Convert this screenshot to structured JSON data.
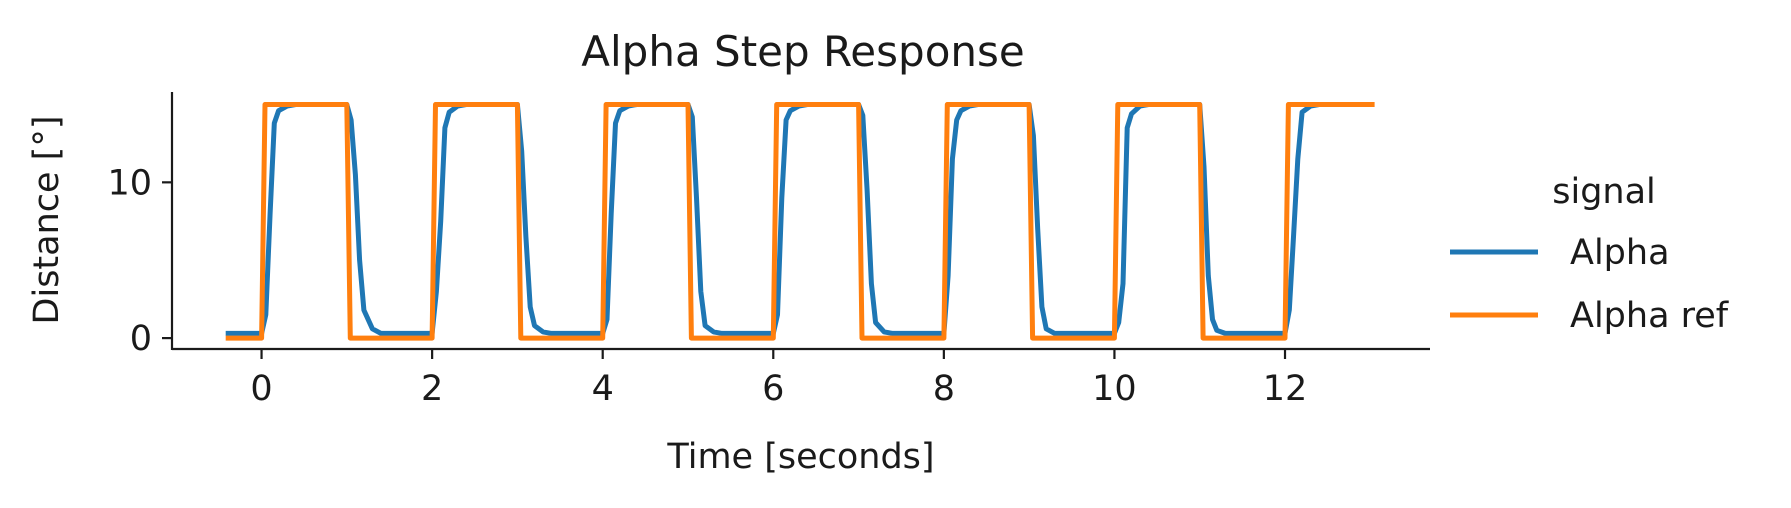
{
  "chart_data": {
    "type": "line",
    "title": "Alpha Step Response",
    "xlabel": "Time [seconds]",
    "ylabel": "Distance [°]",
    "xlim": [
      -1.05,
      13.7
    ],
    "ylim": [
      -0.7,
      15.8
    ],
    "xticks": [
      0,
      2,
      4,
      6,
      8,
      10,
      12
    ],
    "yticks": [
      0,
      10
    ],
    "grid": false,
    "legend": {
      "title": "signal",
      "position": "right",
      "entries": [
        "Alpha",
        "Alpha ref"
      ]
    },
    "series": [
      {
        "name": "Alpha",
        "color": "#1f77b4",
        "x": [
          -0.42,
          0.0,
          0.05,
          0.1,
          0.15,
          0.2,
          0.3,
          0.4,
          0.6,
          0.8,
          1.0,
          1.05,
          1.1,
          1.15,
          1.2,
          1.3,
          1.4,
          1.6,
          1.8,
          2.0,
          2.05,
          2.1,
          2.15,
          2.2,
          2.3,
          2.4,
          2.6,
          2.8,
          3.0,
          3.05,
          3.1,
          3.15,
          3.2,
          3.3,
          3.4,
          3.6,
          3.8,
          4.0,
          4.05,
          4.1,
          4.15,
          4.2,
          4.3,
          4.4,
          4.6,
          4.8,
          5.0,
          5.05,
          5.1,
          5.15,
          5.2,
          5.3,
          5.4,
          5.6,
          5.8,
          6.0,
          6.05,
          6.1,
          6.15,
          6.2,
          6.3,
          6.4,
          6.6,
          6.8,
          7.0,
          7.05,
          7.1,
          7.15,
          7.2,
          7.3,
          7.4,
          7.6,
          7.8,
          8.0,
          8.05,
          8.1,
          8.15,
          8.2,
          8.3,
          8.4,
          8.6,
          8.8,
          9.0,
          9.05,
          9.1,
          9.15,
          9.2,
          9.3,
          9.4,
          9.6,
          9.8,
          10.0,
          10.05,
          10.1,
          10.15,
          10.2,
          10.3,
          10.4,
          10.6,
          10.8,
          11.0,
          11.05,
          11.1,
          11.15,
          11.2,
          11.3,
          11.4,
          11.6,
          11.8,
          12.0,
          12.05,
          12.1,
          12.15,
          12.2,
          12.3,
          12.4,
          12.6
        ],
        "y": [
          0.3,
          0.3,
          1.5,
          8.0,
          13.8,
          14.6,
          14.9,
          15.0,
          15.0,
          15.0,
          15.0,
          14.0,
          10.5,
          5.0,
          1.8,
          0.6,
          0.3,
          0.3,
          0.3,
          0.3,
          3.0,
          7.5,
          13.5,
          14.5,
          14.9,
          15.0,
          15.0,
          15.0,
          15.0,
          12.0,
          6.5,
          2.0,
          0.8,
          0.4,
          0.3,
          0.3,
          0.3,
          0.3,
          1.2,
          8.0,
          13.8,
          14.6,
          14.9,
          15.0,
          15.0,
          15.0,
          15.0,
          14.2,
          9.0,
          3.0,
          0.8,
          0.4,
          0.3,
          0.3,
          0.3,
          0.3,
          1.5,
          9.0,
          14.0,
          14.6,
          14.9,
          15.0,
          15.0,
          15.0,
          15.0,
          14.3,
          9.5,
          3.5,
          1.0,
          0.4,
          0.3,
          0.3,
          0.3,
          0.3,
          4.0,
          11.5,
          14.0,
          14.6,
          14.9,
          15.0,
          15.0,
          15.0,
          15.0,
          13.0,
          7.0,
          2.0,
          0.6,
          0.3,
          0.3,
          0.3,
          0.3,
          0.3,
          1.0,
          3.5,
          13.5,
          14.4,
          14.9,
          15.0,
          15.0,
          15.0,
          15.0,
          11.0,
          4.0,
          1.2,
          0.5,
          0.3,
          0.3,
          0.3,
          0.3,
          0.3,
          1.8,
          6.5,
          11.5,
          14.5,
          14.9,
          15.0,
          15.0
        ]
      },
      {
        "name": "Alpha ref",
        "color": "#ff7f0e",
        "x": [
          -0.42,
          0.0,
          0.04,
          1.0,
          1.04,
          2.0,
          2.04,
          3.0,
          3.04,
          4.0,
          4.04,
          5.0,
          5.04,
          6.0,
          6.04,
          7.0,
          7.04,
          8.0,
          8.04,
          9.0,
          9.04,
          10.0,
          10.04,
          11.0,
          11.04,
          12.0,
          12.04,
          13.05
        ],
        "y": [
          0,
          0,
          15,
          15,
          0,
          0,
          15,
          15,
          0,
          0,
          15,
          15,
          0,
          0,
          15,
          15,
          0,
          0,
          15,
          15,
          0,
          0,
          15,
          15,
          0,
          0,
          15,
          15
        ]
      }
    ]
  }
}
